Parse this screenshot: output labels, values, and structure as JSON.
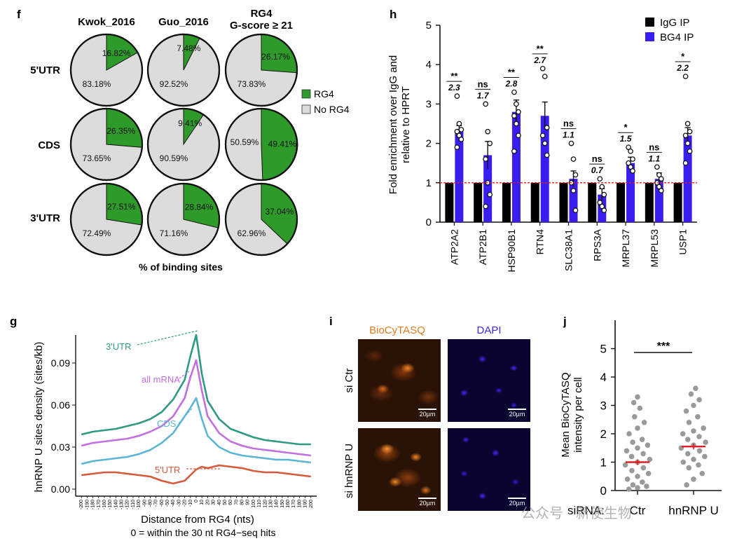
{
  "panel_f": {
    "label": "f",
    "col_headers": [
      "Kwok_2016",
      "Guo_2016",
      "RG4"
    ],
    "col_header_sub": "G-score ≥ 21",
    "row_labels": [
      "5'UTR",
      "CDS",
      "3'UTR"
    ],
    "legend": [
      "RG4",
      "No RG4"
    ],
    "xlabel": "% of binding sites",
    "colors": {
      "rg4": "#2e9a2a",
      "no_rg4": "#dcdcdc"
    }
  },
  "panel_h": {
    "label": "h"
  },
  "panel_g": {
    "label": "g"
  },
  "panel_i": {
    "label": "i",
    "channels": [
      "BioCyTASQ",
      "DAPI"
    ],
    "rows": [
      "si Ctr",
      "si hnRNP U"
    ],
    "scale": "20µm"
  },
  "panel_j": {
    "label": "j"
  },
  "watermark": "公众号 · 新使生物",
  "chart_data": [
    {
      "type": "pie",
      "title": "% of binding sites",
      "grid": [
        [
          {
            "rg4": 16.82,
            "no": 83.18,
            "rg4_label": "16.82%",
            "no_label": "83.18%"
          },
          {
            "rg4": 7.48,
            "no": 92.52,
            "rg4_label": "7.48%",
            "no_label": "92.52%"
          },
          {
            "rg4": 26.17,
            "no": 73.83,
            "rg4_label": "26.17%",
            "no_label": "73.83%"
          }
        ],
        [
          {
            "rg4": 26.35,
            "no": 73.65,
            "rg4_label": "26.35%",
            "no_label": "73.65%"
          },
          {
            "rg4": 9.41,
            "no": 90.59,
            "rg4_label": "9.41%",
            "no_label": "90.59%"
          },
          {
            "rg4": 49.41,
            "no": 50.59,
            "rg4_label": "49.41%",
            "no_label": "50.59%"
          }
        ],
        [
          {
            "rg4": 27.51,
            "no": 72.49,
            "rg4_label": "27.51%",
            "no_label": "72.49%"
          },
          {
            "rg4": 28.84,
            "no": 71.16,
            "rg4_label": "28.84%",
            "no_label": "71.16%"
          },
          {
            "rg4": 37.04,
            "no": 62.96,
            "rg4_label": "37.04%",
            "no_label": "62.96%"
          }
        ]
      ]
    },
    {
      "type": "bar",
      "ylabel": "Fold enrichment over IgG and relative to HPRT",
      "ylim": [
        0,
        5
      ],
      "yticks": [
        0,
        1,
        2,
        3,
        4,
        5
      ],
      "reference_line": 1,
      "categories": [
        "ATP2A2",
        "ATP2B1",
        "HSP90B1",
        "RTN4",
        "SLC38A1",
        "RPS3A",
        "MRPL37",
        "MRPL53",
        "USP1"
      ],
      "series": [
        {
          "name": "IgG IP",
          "color": "#000000",
          "values": [
            1,
            1,
            1,
            1,
            1,
            1,
            1,
            1,
            1
          ]
        },
        {
          "name": "BG4 IP",
          "color": "#3a1ef0",
          "values": [
            2.3,
            1.7,
            2.8,
            2.7,
            1.1,
            0.7,
            1.5,
            1.1,
            2.2
          ],
          "errors": [
            0.15,
            0.35,
            0.3,
            0.35,
            0.2,
            0.15,
            0.15,
            0.15,
            0.2
          ]
        }
      ],
      "points": [
        [
          3.2,
          2.5,
          2.35,
          2.3,
          2.2,
          2.1,
          1.9
        ],
        [
          3.0,
          2.3,
          2.0,
          1.6,
          1.0,
          0.7,
          0.4
        ],
        [
          3.3,
          3.0,
          2.8,
          2.7,
          2.5,
          2.2,
          1.8
        ],
        [
          3.9,
          3.7,
          2.4,
          2.2,
          2.0,
          1.7
        ],
        [
          2.0,
          1.6,
          1.2,
          1.0,
          0.8,
          0.3
        ],
        [
          1.1,
          0.9,
          0.7,
          0.5,
          0.4,
          0.3
        ],
        [
          1.9,
          1.8,
          1.6,
          1.5,
          1.4,
          1.3
        ],
        [
          1.4,
          1.2,
          1.1,
          1.0,
          0.9,
          0.8
        ],
        [
          3.7,
          2.5,
          2.3,
          2.2,
          2.0,
          1.8,
          1.5
        ]
      ],
      "significance": [
        "**",
        "ns",
        "**",
        "**",
        "ns",
        "ns",
        "*",
        "ns",
        "*"
      ],
      "fold_labels": [
        "2.3",
        "1.7",
        "2.8",
        "2.7",
        "1.1",
        "0.7",
        "1.5",
        "1.1",
        "2.2"
      ],
      "legend": "top-right"
    },
    {
      "type": "line",
      "xlabel": "Distance from RG4 (nts)",
      "xlabel2": "0 = within the 30 nt RG4−seq hits",
      "ylabel": "hnRNP U sites density (sites/kb)",
      "ylim": [
        -0.005,
        0.11
      ],
      "yticks": [
        "0.00",
        "0.03",
        "0.06",
        "0.09"
      ],
      "xticks": [
        -200,
        -190,
        -180,
        -170,
        -160,
        -150,
        -140,
        -130,
        -120,
        -110,
        -100,
        -90,
        -80,
        -70,
        -60,
        -50,
        -40,
        -30,
        -20,
        -10,
        0,
        10,
        20,
        30,
        40,
        50,
        60,
        70,
        80,
        90,
        100,
        110,
        120,
        130,
        140,
        150,
        160,
        170,
        180,
        190,
        200
      ],
      "x": [
        -200,
        -180,
        -160,
        -140,
        -120,
        -100,
        -80,
        -60,
        -40,
        -20,
        -10,
        0,
        10,
        20,
        40,
        60,
        80,
        100,
        120,
        140,
        160,
        180,
        200
      ],
      "series": [
        {
          "name": "3'UTR",
          "color": "#2f9a84",
          "values": [
            0.039,
            0.041,
            0.042,
            0.043,
            0.045,
            0.047,
            0.05,
            0.055,
            0.064,
            0.078,
            0.095,
            0.11,
            0.082,
            0.063,
            0.05,
            0.043,
            0.04,
            0.037,
            0.035,
            0.034,
            0.033,
            0.032,
            0.032
          ]
        },
        {
          "name": "all mRNA",
          "color": "#c070e0",
          "values": [
            0.031,
            0.033,
            0.034,
            0.035,
            0.036,
            0.038,
            0.041,
            0.045,
            0.052,
            0.065,
            0.08,
            0.092,
            0.07,
            0.052,
            0.04,
            0.034,
            0.031,
            0.029,
            0.028,
            0.027,
            0.026,
            0.025,
            0.024
          ]
        },
        {
          "name": "CDS",
          "color": "#5bb6d6",
          "values": [
            0.018,
            0.02,
            0.021,
            0.022,
            0.023,
            0.025,
            0.028,
            0.033,
            0.04,
            0.052,
            0.058,
            0.065,
            0.05,
            0.038,
            0.03,
            0.026,
            0.024,
            0.023,
            0.022,
            0.021,
            0.021,
            0.02,
            0.019
          ]
        },
        {
          "name": "5'UTR",
          "color": "#d65a3a",
          "values": [
            0.01,
            0.011,
            0.012,
            0.012,
            0.011,
            0.01,
            0.009,
            0.006,
            0.004,
            0.006,
            0.01,
            0.014,
            0.016,
            0.015,
            0.017,
            0.016,
            0.015,
            0.013,
            0.012,
            0.012,
            0.011,
            0.01,
            0.009
          ]
        }
      ]
    },
    {
      "type": "scatter",
      "ylabel": "Mean BioCyTASQ intensity per cell",
      "ylim": [
        0,
        6
      ],
      "yticks": [
        0,
        1,
        2,
        3,
        4,
        5
      ],
      "xlabel_prefix": "siRNA:",
      "categories": [
        "Ctr",
        "hnRNP U"
      ],
      "means": [
        1.0,
        1.55
      ],
      "sem": [
        0.1,
        0.1
      ],
      "significance": "***",
      "points": [
        [
          0.05,
          0.1,
          0.15,
          0.2,
          0.3,
          0.4,
          0.5,
          0.6,
          0.7,
          0.8,
          0.9,
          1.0,
          1.1,
          1.2,
          1.3,
          1.4,
          1.5,
          1.6,
          1.7,
          1.8,
          2.0,
          2.2,
          2.4,
          2.6,
          2.9,
          3.1,
          3.3
        ],
        [
          0.2,
          0.4,
          0.6,
          0.8,
          0.9,
          1.0,
          1.1,
          1.2,
          1.3,
          1.4,
          1.5,
          1.6,
          1.7,
          1.8,
          1.9,
          2.0,
          2.1,
          2.2,
          2.4,
          2.6,
          2.8,
          3.0,
          3.2,
          3.4,
          3.6
        ]
      ]
    }
  ]
}
